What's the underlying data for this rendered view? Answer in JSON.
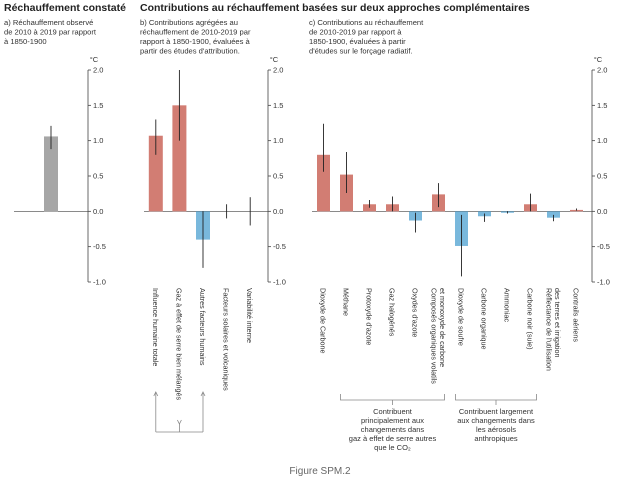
{
  "figure": {
    "caption": "Figure SPM.2",
    "unit": "°C"
  },
  "colors": {
    "observed": "#a6a6a6",
    "warming": "#d27d73",
    "cooling": "#79b8dc",
    "axis": "#444444",
    "grid": "#bbbbbb",
    "bracket": "#888888"
  },
  "headers": {
    "left": "Réchauffement constaté",
    "right": "Contributions au réchauffement basées sur deux approches complémentaires"
  },
  "chart_data": [
    {
      "type": "bar",
      "panel": "a",
      "title": "a) Réchauffement observé\nde 2010 à 2019 par rapport\nà 1850-1900",
      "categories": [
        ""
      ],
      "series": [
        {
          "values": [
            1.06
          ],
          "error_low": [
            0.88
          ],
          "error_high": [
            1.21
          ],
          "colors": [
            "observed"
          ]
        }
      ],
      "ylim": [
        -1.0,
        2.0
      ],
      "yticks": [
        "2.0",
        "1.5",
        "1.0",
        "0.5",
        "0.0",
        "-0.5",
        "-1.0"
      ],
      "ylabel": "°C",
      "grid": false
    },
    {
      "type": "bar",
      "panel": "b",
      "title": "b) Contributions agrégées au\nréchauffement de 2010-2019 par\nrapport à 1850-1900, évaluées à\npartir des études d'attribution.",
      "categories": [
        "Influence humaine totale",
        "Gaz à effet de serre bien mélangés",
        "Autres facteurs humains",
        "Facteurs solaires et volcaniques",
        "Variabilité interne"
      ],
      "series": [
        {
          "values": [
            1.07,
            1.5,
            -0.4,
            0.0,
            0.0
          ],
          "error_low": [
            0.8,
            1.0,
            -0.8,
            -0.1,
            -0.2
          ],
          "error_high": [
            1.3,
            2.0,
            0.0,
            0.1,
            0.2
          ],
          "colors": [
            "warming",
            "warming",
            "cooling",
            "none",
            "none"
          ]
        }
      ],
      "ylim": [
        -1.0,
        2.0
      ],
      "yticks": [
        "2.0",
        "1.5",
        "1.0",
        "0.5",
        "0.0",
        "-0.5",
        "-1.0"
      ],
      "ylabel": "°C",
      "grid": false
    },
    {
      "type": "bar",
      "panel": "c",
      "title": "c) Contributions au réchauffement\nde 2010-2019 par rapport à\n1850-1900, évaluées à partir\nd'études sur le forçage radiatif.",
      "categories": [
        "Dioxyde de Carbone",
        "Méthane",
        "Protoxyde d'azote",
        "Gaz halogénés",
        "Oxydes d'azote",
        "Composés organiques volatils\net monoxyde de carbone",
        "Dioxyde de soufre",
        "Carbone organique",
        "Ammoniac",
        "Carbone noir (suie)",
        "Réflectance de l'utilisation\ndes terres et irrigation",
        "Contrails aériens"
      ],
      "series": [
        {
          "values": [
            0.8,
            0.52,
            0.1,
            0.1,
            -0.13,
            0.24,
            -0.49,
            -0.07,
            -0.02,
            0.1,
            -0.09,
            0.02
          ],
          "error_low": [
            0.56,
            0.26,
            0.05,
            0.0,
            -0.3,
            0.06,
            -0.92,
            -0.15,
            -0.03,
            0.0,
            -0.14,
            0.01
          ],
          "error_high": [
            1.24,
            0.84,
            0.16,
            0.21,
            -0.02,
            0.4,
            -0.05,
            -0.03,
            0.0,
            0.25,
            -0.05,
            0.04
          ],
          "colors": [
            "warming",
            "warming",
            "warming",
            "warming",
            "cooling",
            "warming",
            "cooling",
            "cooling",
            "cooling",
            "warming",
            "cooling",
            "warming"
          ]
        }
      ],
      "ylim": [
        -1.0,
        2.0
      ],
      "yticks": [
        "2.0",
        "1.5",
        "1.0",
        "0.5",
        "0.0",
        "-0.5",
        "-1.0"
      ],
      "ylabel": "°C",
      "grid": false
    }
  ],
  "annotations": {
    "ghg_bracket": "Contribuent\nprincipalement aux\nchangements dans\ngaz à effet de serre autres\nque le CO₂",
    "aerosol_bracket": "Contribuent largement\naux changements dans\nles aérosols\nanthropiques"
  }
}
